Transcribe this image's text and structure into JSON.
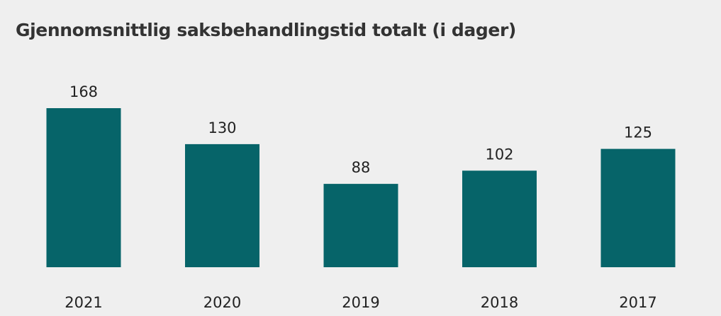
{
  "chart_data": {
    "type": "bar",
    "title": "Gjennomsnittlig saksbehandlingstid totalt (i dager)",
    "categories": [
      "2021",
      "2020",
      "2019",
      "2018",
      "2017"
    ],
    "values": [
      168,
      130,
      88,
      102,
      125
    ],
    "ylim": [
      0,
      168
    ],
    "grid": false,
    "legend": "none",
    "bar_color": "#066469",
    "background_color": "#efefef"
  }
}
